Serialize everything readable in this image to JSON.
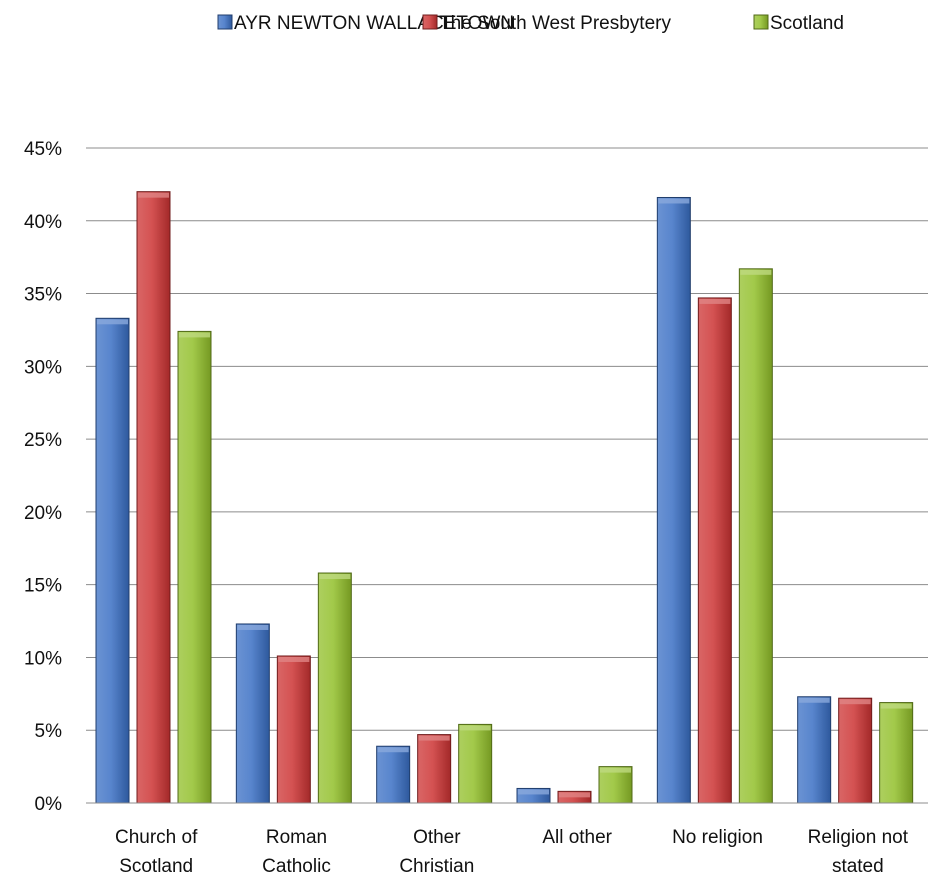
{
  "chart_data": {
    "type": "bar",
    "title": "",
    "xlabel": "",
    "ylabel": "",
    "ylim": [
      0,
      45
    ],
    "yticks": [
      0,
      5,
      10,
      15,
      20,
      25,
      30,
      35,
      40,
      45
    ],
    "ytick_suffix": "%",
    "grid": true,
    "legend_position": "top",
    "categories": [
      [
        "Church of",
        "Scotland"
      ],
      [
        "Roman",
        "Catholic"
      ],
      [
        "Other",
        "Christian"
      ],
      [
        "All other"
      ],
      [
        "No religion"
      ],
      [
        "Religion not",
        "stated"
      ]
    ],
    "series": [
      {
        "name": "AYR NEWTON WALLACETOWN",
        "color": "#3a6fc4",
        "values": [
          33.3,
          12.3,
          3.9,
          1.0,
          41.6,
          7.3
        ]
      },
      {
        "name": "The South West Presbytery",
        "color": "#cc3333",
        "values": [
          42.0,
          10.1,
          4.7,
          0.8,
          34.7,
          7.2
        ]
      },
      {
        "name": "Scotland",
        "color": "#92bf2a",
        "values": [
          32.4,
          15.8,
          5.4,
          2.5,
          36.7,
          6.9
        ]
      }
    ]
  }
}
